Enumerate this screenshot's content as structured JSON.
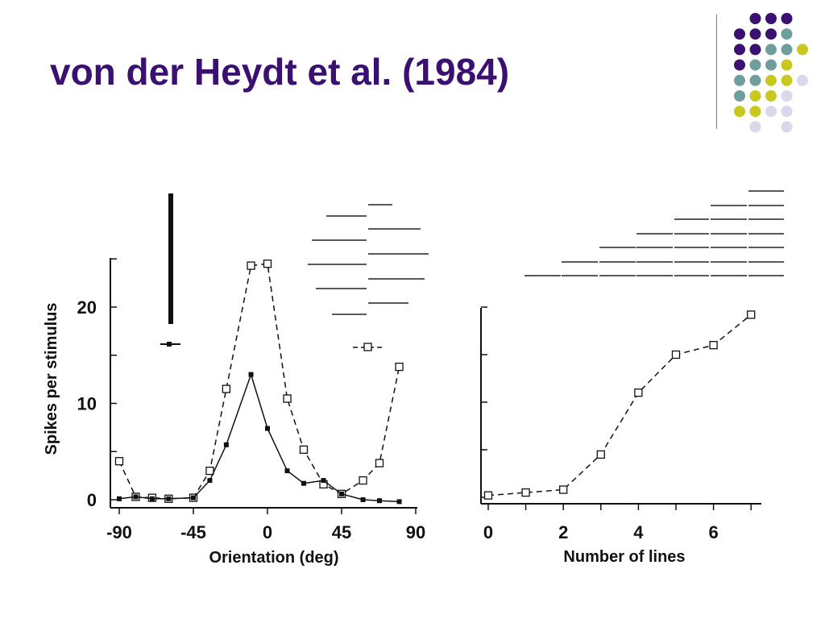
{
  "slide": {
    "title": "von der Heydt et al. (1984)",
    "colors": {
      "title": "#3a1070",
      "dot_purple": "#3a1070",
      "dot_teal": "#6f9e9b",
      "dot_olive": "#c8c820",
      "dot_lavender": "#d8d8ea"
    }
  },
  "chart_data": [
    {
      "type": "line",
      "xlabel": "Orientation (deg)",
      "ylabel": "Spikes per stimulus",
      "xlim": [
        -90,
        90
      ],
      "ylim": [
        0,
        25
      ],
      "x_ticks": [
        "-90",
        "-45",
        "0",
        "45",
        "90"
      ],
      "y_ticks": [
        "0",
        "10",
        "20"
      ],
      "series": [
        {
          "style": "dashed, open squares",
          "x": [
            -90,
            -80,
            -70,
            -60,
            -45,
            -35,
            -25,
            -10,
            0,
            12,
            22,
            34,
            45,
            58,
            68,
            80
          ],
          "y": [
            4.0,
            0.3,
            0.2,
            0.1,
            0.2,
            3.0,
            11.5,
            24.3,
            24.5,
            10.5,
            5.2,
            1.6,
            0.6,
            2.0,
            3.8,
            13.8
          ]
        },
        {
          "style": "solid, filled squares",
          "x": [
            -90,
            -80,
            -70,
            -60,
            -45,
            -35,
            -25,
            -10,
            0,
            12,
            22,
            34,
            45,
            58,
            68,
            80
          ],
          "y": [
            0.1,
            0.3,
            0.1,
            0.1,
            0.2,
            2.0,
            5.7,
            13.0,
            7.4,
            3.0,
            1.7,
            2.0,
            0.6,
            0.0,
            -0.1,
            -0.2
          ]
        }
      ]
    },
    {
      "type": "line",
      "xlabel": "Number of lines",
      "ylabel": "",
      "xlim": [
        0,
        7
      ],
      "ylim": [
        0,
        20
      ],
      "x_ticks": [
        "0",
        "2",
        "4",
        "6"
      ],
      "series": [
        {
          "style": "dashed, open squares",
          "x": [
            0,
            1,
            2,
            3,
            4,
            5,
            6,
            7
          ],
          "y": [
            0.2,
            0.5,
            0.8,
            4.5,
            11.0,
            15.0,
            16.0,
            19.2
          ]
        }
      ]
    }
  ]
}
